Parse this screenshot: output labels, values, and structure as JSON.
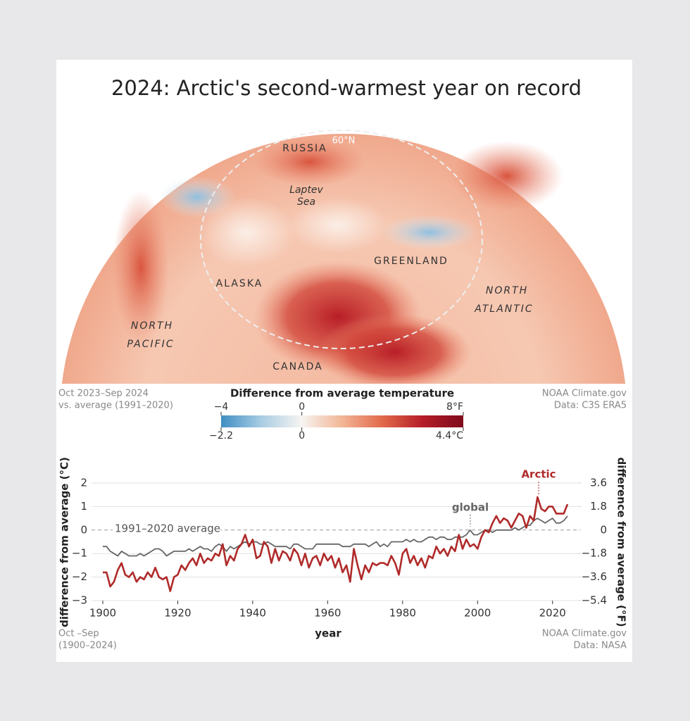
{
  "title": "2024: Arctic's second-warmest year on record",
  "map": {
    "labels": [
      "RUSSIA",
      "60°N",
      "Laptev",
      "Sea",
      "GREENLAND",
      "ALASKA",
      "NORTH",
      "ATLANTIC",
      "NORTH",
      "PACIFIC",
      "CANADA"
    ],
    "note_left": [
      "Oct 2023–Sep 2024",
      "vs. average (1991–2020)"
    ],
    "note_right": [
      "NOAA Climate.gov",
      "Data: C3S ERA5"
    ]
  },
  "colorbar": {
    "title": "Difference from average temperature",
    "colors": [
      "#3f8ec4",
      "#a9cde3",
      "#f7f4f1",
      "#f2b596",
      "#e1694a",
      "#b51d28",
      "#7e0a1c"
    ],
    "flim": [
      -4,
      8
    ],
    "fticks": [
      {
        "value": -4,
        "label": "−4"
      },
      0,
      {
        "value": 8,
        "label": "8°F"
      }
    ],
    "clim": [
      -2.2,
      4.4
    ],
    "cticks": [
      {
        "value": -2.2,
        "label": "−2.2"
      },
      0,
      {
        "value": 4.4,
        "label": "4.4°C"
      }
    ]
  },
  "chart_data": {
    "type": "line",
    "xlabel": "year",
    "ylabel": "difference from average (°C)",
    "y2label": "difference from average (°F)",
    "x": [
      1900,
      1901,
      1902,
      1903,
      1904,
      1905,
      1906,
      1907,
      1908,
      1909,
      1910,
      1911,
      1912,
      1913,
      1914,
      1915,
      1916,
      1917,
      1918,
      1919,
      1920,
      1921,
      1922,
      1923,
      1924,
      1925,
      1926,
      1927,
      1928,
      1929,
      1930,
      1931,
      1932,
      1933,
      1934,
      1935,
      1936,
      1937,
      1938,
      1939,
      1940,
      1941,
      1942,
      1943,
      1944,
      1945,
      1946,
      1947,
      1948,
      1949,
      1950,
      1951,
      1952,
      1953,
      1954,
      1955,
      1956,
      1957,
      1958,
      1959,
      1960,
      1961,
      1962,
      1963,
      1964,
      1965,
      1966,
      1967,
      1968,
      1969,
      1970,
      1971,
      1972,
      1973,
      1974,
      1975,
      1976,
      1977,
      1978,
      1979,
      1980,
      1981,
      1982,
      1983,
      1984,
      1985,
      1986,
      1987,
      1988,
      1989,
      1990,
      1991,
      1992,
      1993,
      1994,
      1995,
      1996,
      1997,
      1998,
      1999,
      2000,
      2001,
      2002,
      2003,
      2004,
      2005,
      2006,
      2007,
      2008,
      2009,
      2010,
      2011,
      2012,
      2013,
      2014,
      2015,
      2016,
      2017,
      2018,
      2019,
      2020,
      2021,
      2022,
      2023,
      2024
    ],
    "series": [
      {
        "name": "global",
        "color": "#666666",
        "values": [
          -0.7,
          -0.7,
          -0.9,
          -1.0,
          -1.1,
          -0.9,
          -1.0,
          -1.1,
          -1.1,
          -1.1,
          -1.0,
          -1.1,
          -1.0,
          -0.9,
          -0.8,
          -0.8,
          -0.9,
          -1.1,
          -1.0,
          -0.9,
          -0.9,
          -0.9,
          -0.9,
          -0.8,
          -0.9,
          -0.8,
          -0.7,
          -0.8,
          -0.8,
          -0.9,
          -0.7,
          -0.6,
          -0.7,
          -0.9,
          -0.7,
          -0.8,
          -0.7,
          -0.6,
          -0.5,
          -0.6,
          -0.5,
          -0.5,
          -0.6,
          -0.6,
          -0.5,
          -0.6,
          -0.7,
          -0.7,
          -0.7,
          -0.7,
          -0.8,
          -0.6,
          -0.6,
          -0.7,
          -0.8,
          -0.8,
          -0.8,
          -0.6,
          -0.6,
          -0.6,
          -0.6,
          -0.6,
          -0.6,
          -0.6,
          -0.7,
          -0.7,
          -0.7,
          -0.6,
          -0.6,
          -0.6,
          -0.6,
          -0.7,
          -0.6,
          -0.5,
          -0.7,
          -0.6,
          -0.7,
          -0.5,
          -0.5,
          -0.5,
          -0.5,
          -0.4,
          -0.5,
          -0.4,
          -0.5,
          -0.5,
          -0.4,
          -0.3,
          -0.3,
          -0.4,
          -0.3,
          -0.3,
          -0.4,
          -0.4,
          -0.3,
          -0.3,
          -0.3,
          -0.2,
          0.0,
          -0.2,
          -0.2,
          -0.1,
          0.0,
          0.0,
          -0.1,
          0.0,
          0.0,
          0.0,
          0.0,
          0.0,
          0.1,
          0.0,
          0.1,
          0.2,
          0.2,
          0.4,
          0.5,
          0.4,
          0.3,
          0.4,
          0.5,
          0.3,
          0.3,
          0.4,
          0.6
        ]
      },
      {
        "name": "Arctic",
        "color": "#b02a2a",
        "values": [
          -1.8,
          -1.8,
          -2.4,
          -2.2,
          -1.7,
          -1.4,
          -1.9,
          -2.0,
          -1.8,
          -2.2,
          -2.0,
          -2.1,
          -1.8,
          -2.0,
          -1.6,
          -2.0,
          -2.1,
          -2.0,
          -2.6,
          -2.0,
          -1.9,
          -1.5,
          -1.7,
          -1.4,
          -1.2,
          -1.5,
          -1.0,
          -1.4,
          -1.2,
          -1.3,
          -1.0,
          -1.1,
          -0.6,
          -1.5,
          -1.1,
          -1.3,
          -0.8,
          -0.6,
          -0.2,
          -0.7,
          -0.4,
          -1.2,
          -1.1,
          -0.5,
          -0.7,
          -1.4,
          -0.8,
          -1.3,
          -0.9,
          -1.0,
          -1.3,
          -0.8,
          -1.0,
          -1.5,
          -1.0,
          -1.6,
          -1.2,
          -1.1,
          -1.5,
          -1.0,
          -1.3,
          -1.1,
          -1.6,
          -1.2,
          -1.8,
          -1.5,
          -2.2,
          -0.8,
          -1.5,
          -2.1,
          -1.5,
          -1.8,
          -1.4,
          -1.5,
          -1.4,
          -1.4,
          -1.5,
          -1.1,
          -1.4,
          -1.9,
          -1.0,
          -0.8,
          -1.4,
          -1.1,
          -1.5,
          -1.2,
          -1.6,
          -1.1,
          -1.2,
          -0.7,
          -1.0,
          -0.8,
          -1.1,
          -0.7,
          -0.9,
          -0.2,
          -0.8,
          -0.4,
          -0.7,
          -0.6,
          -0.8,
          -0.3,
          0.0,
          -0.1,
          0.3,
          0.6,
          0.3,
          0.5,
          0.4,
          0.1,
          0.4,
          0.7,
          0.6,
          0.1,
          0.6,
          0.4,
          1.4,
          0.9,
          0.8,
          1.0,
          1.0,
          0.7,
          0.7,
          0.7,
          1.1
        ]
      }
    ],
    "xlim": [
      1897,
      2027
    ],
    "xticks": [
      1900,
      1920,
      1940,
      1960,
      1980,
      2000,
      2020
    ],
    "ylim": [
      -3,
      2
    ],
    "yticks": [
      {
        "value": -3,
        "label": "−3"
      },
      {
        "value": -2,
        "label": "−2"
      },
      {
        "value": -1,
        "label": "−1"
      },
      0,
      1,
      2
    ],
    "y2lim": [
      -5.4,
      3.6
    ],
    "y2ticks": [
      {
        "value": -5.4,
        "label": "−5.4"
      },
      {
        "value": -3.6,
        "label": "−3.6"
      },
      {
        "value": -1.8,
        "label": "−1.8"
      },
      0,
      1.8,
      3.6
    ],
    "grid": true,
    "annotations": [
      "1991–2020 average",
      "global",
      "Arctic"
    ],
    "note_left": [
      "Oct –Sep",
      "(1900–2024)"
    ],
    "note_right": [
      "NOAA Climate.gov",
      "Data: NASA"
    ]
  }
}
